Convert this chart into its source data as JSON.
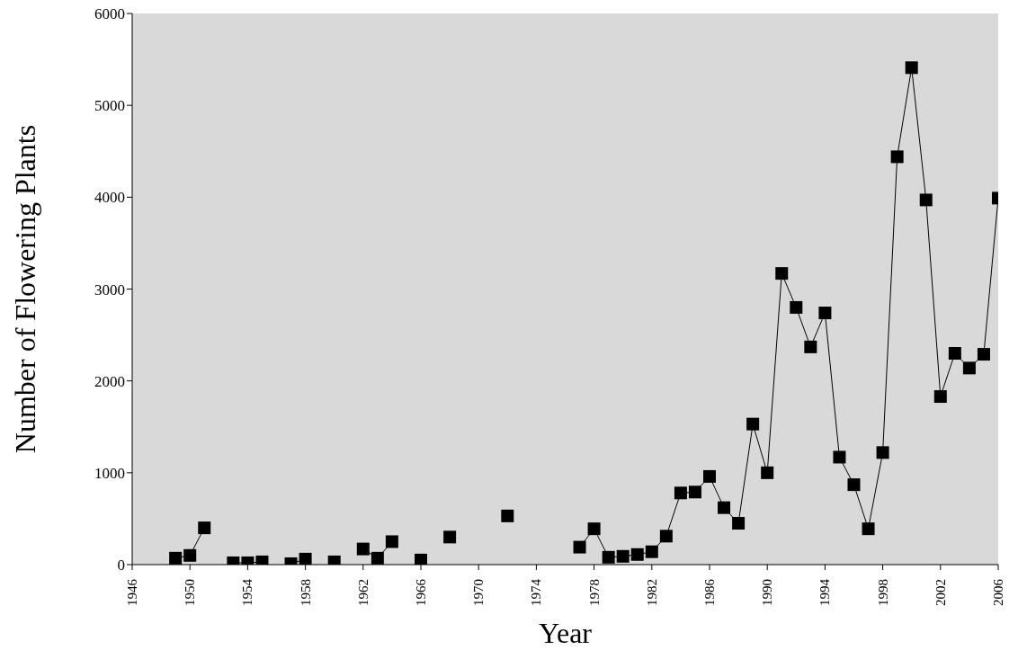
{
  "chart_data": {
    "type": "line",
    "xlabel": "Year",
    "ylabel": "Number of Flowering Plants",
    "x": [
      1949,
      1950,
      1951,
      1952,
      1953,
      1954,
      1955,
      1956,
      1957,
      1958,
      1959,
      1960,
      1961,
      1962,
      1963,
      1964,
      1965,
      1966,
      1967,
      1968,
      1969,
      1970,
      1971,
      1972,
      1973,
      1974,
      1975,
      1976,
      1977,
      1978,
      1979,
      1980,
      1981,
      1982,
      1983,
      1984,
      1985,
      1986,
      1987,
      1988,
      1989,
      1990,
      1991,
      1992,
      1993,
      1994,
      1995,
      1996,
      1997,
      1998,
      1999,
      2000,
      2001,
      2002,
      2003,
      2004,
      2005,
      2006
    ],
    "series": [
      {
        "color": "#000000",
        "values": [
          70,
          100,
          400,
          null,
          20,
          20,
          30,
          null,
          10,
          60,
          null,
          30,
          null,
          170,
          70,
          250,
          null,
          50,
          null,
          300,
          null,
          null,
          null,
          530,
          null,
          null,
          null,
          null,
          190,
          390,
          80,
          90,
          110,
          140,
          310,
          780,
          790,
          960,
          620,
          450,
          1530,
          1000,
          3170,
          2800,
          2370,
          2740,
          1170,
          870,
          390,
          1220,
          4440,
          5410,
          3970,
          1830,
          2300,
          2140,
          2290,
          3990
        ]
      }
    ],
    "xlim": [
      1946,
      2006
    ],
    "xticks": [
      1946,
      1950,
      1954,
      1958,
      1962,
      1966,
      1970,
      1974,
      1978,
      1982,
      1986,
      1990,
      1994,
      1998,
      2002,
      2006
    ],
    "ylim": [
      0,
      6000
    ],
    "yticks": [
      0,
      1000,
      2000,
      3000,
      4000,
      5000,
      6000
    ],
    "marker": "square",
    "line_style": "solid",
    "grid": false
  }
}
